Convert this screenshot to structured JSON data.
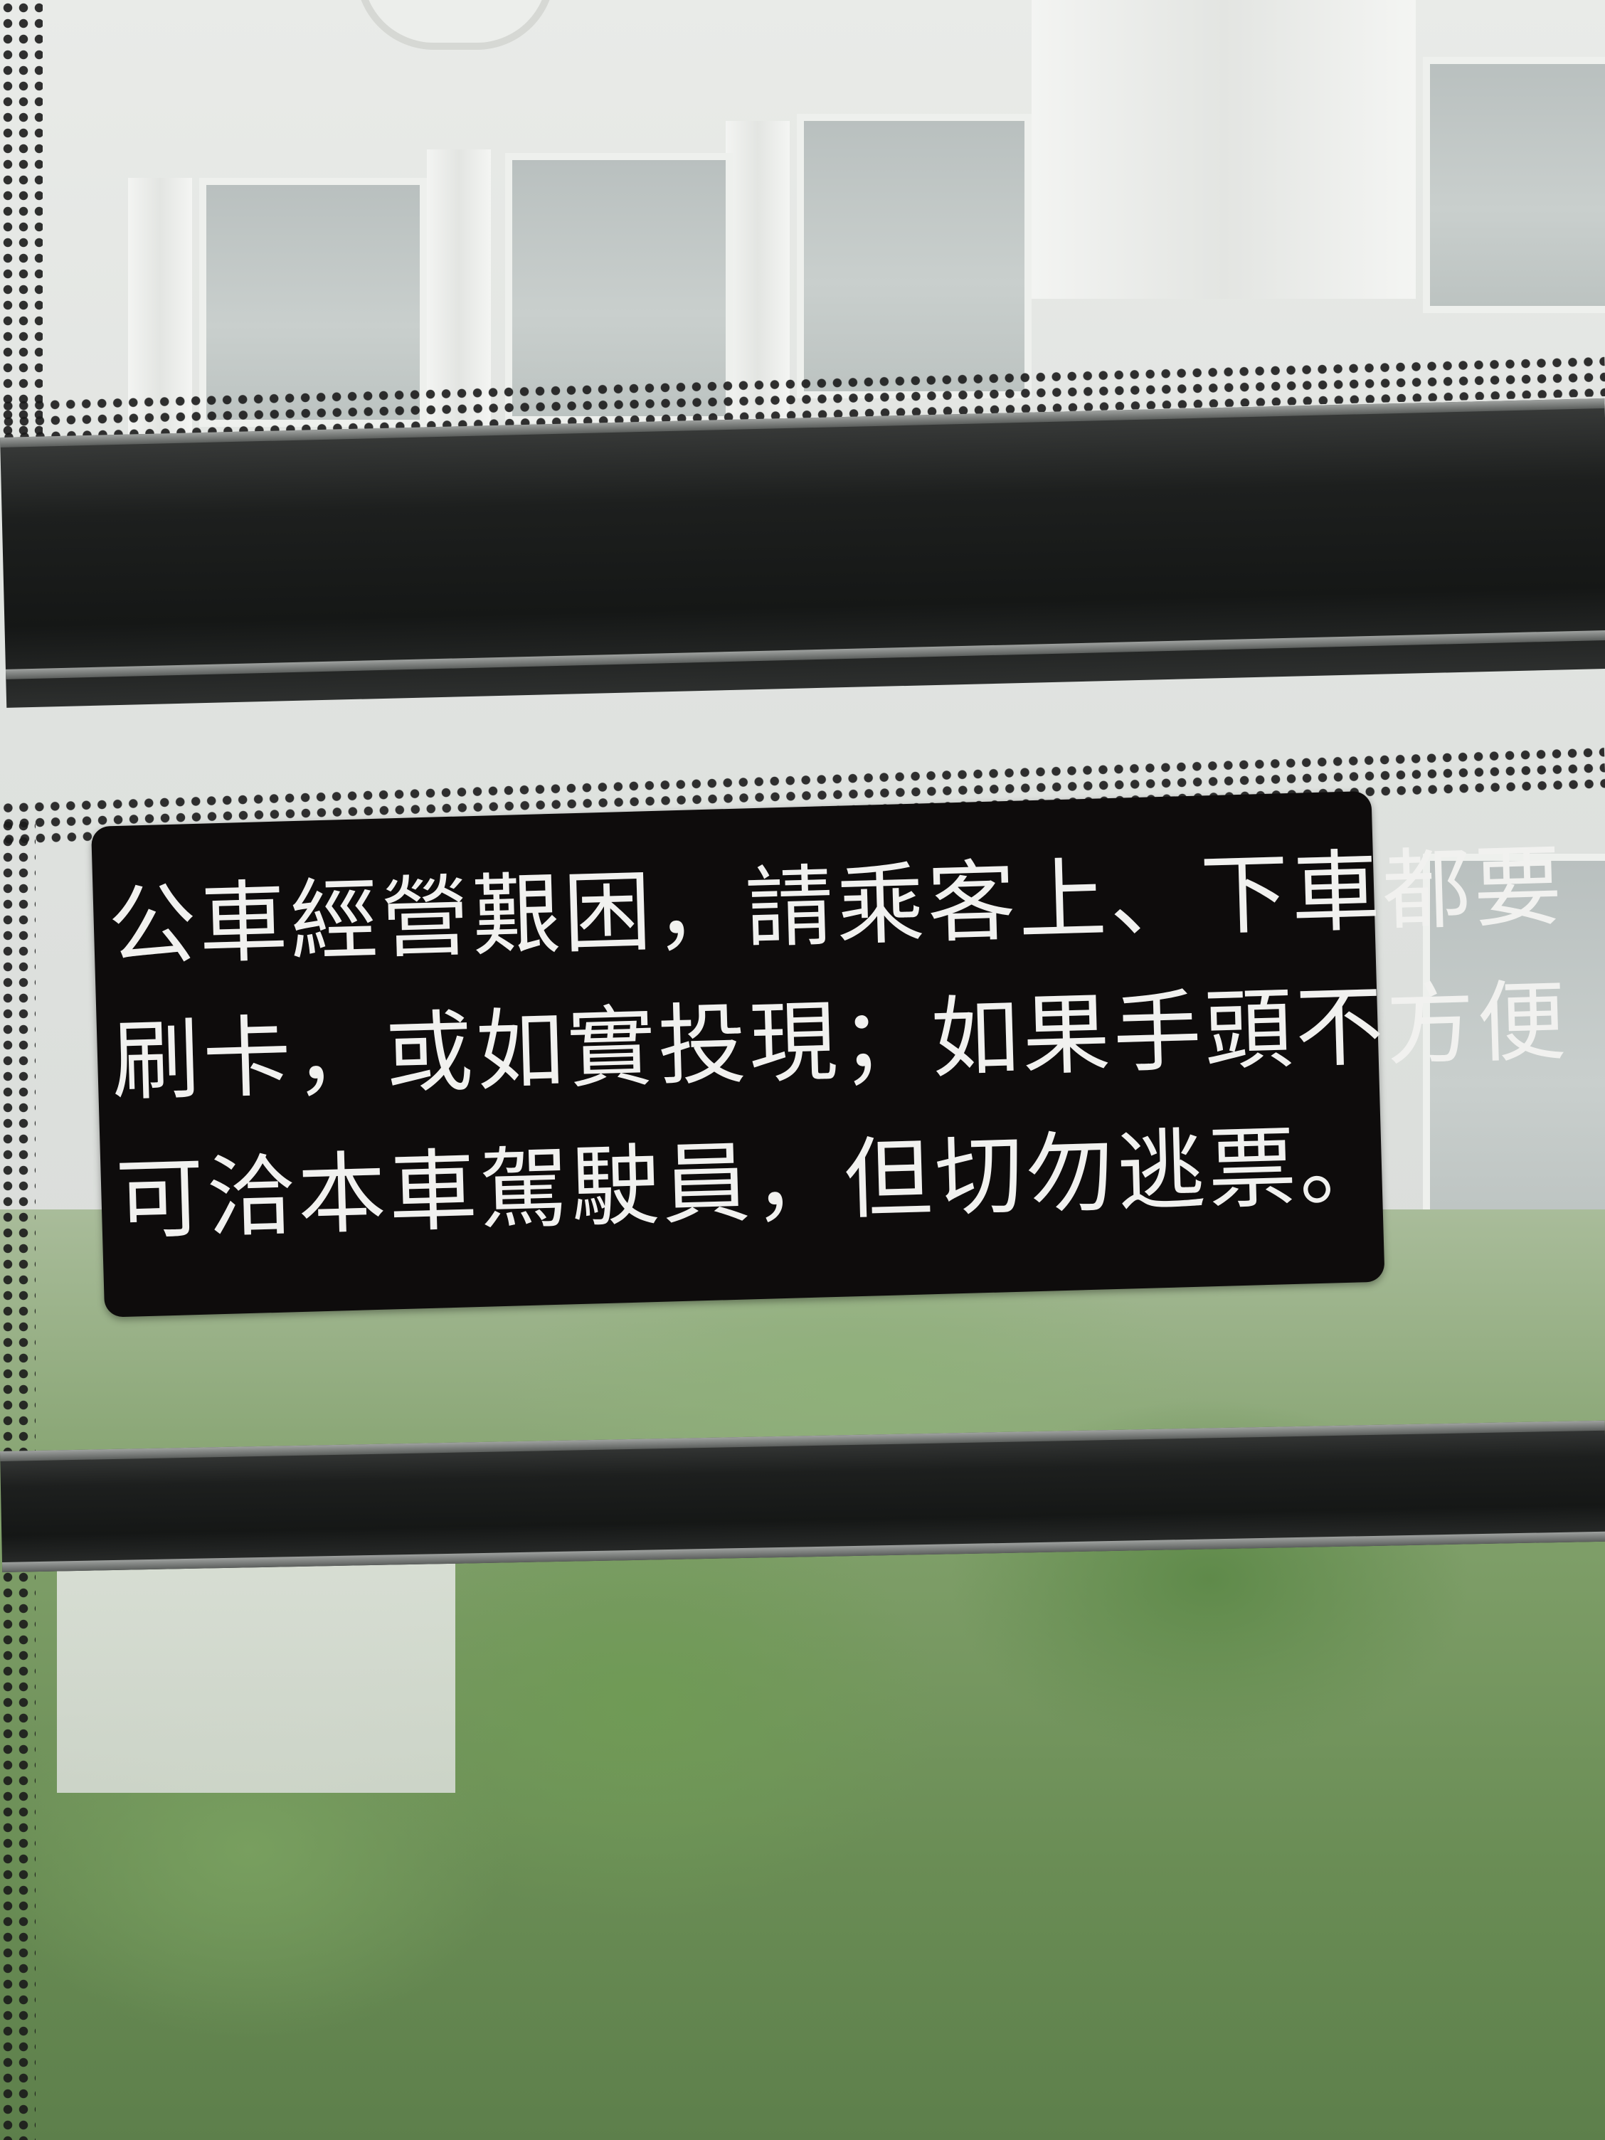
{
  "notice": {
    "lines": [
      "公車經營艱困，請乘客上、下車都要",
      "刷卡，或如實投現；如果手頭不方便",
      "可洽本車駕駛員，但切勿逃票。"
    ]
  },
  "colors": {
    "sticker_background": "#0e0c0c",
    "sticker_text": "#f1f1ef",
    "window_frame": "#1d1f1e",
    "building_wall": "#e9ebe8",
    "foliage": "#6f9a55"
  }
}
